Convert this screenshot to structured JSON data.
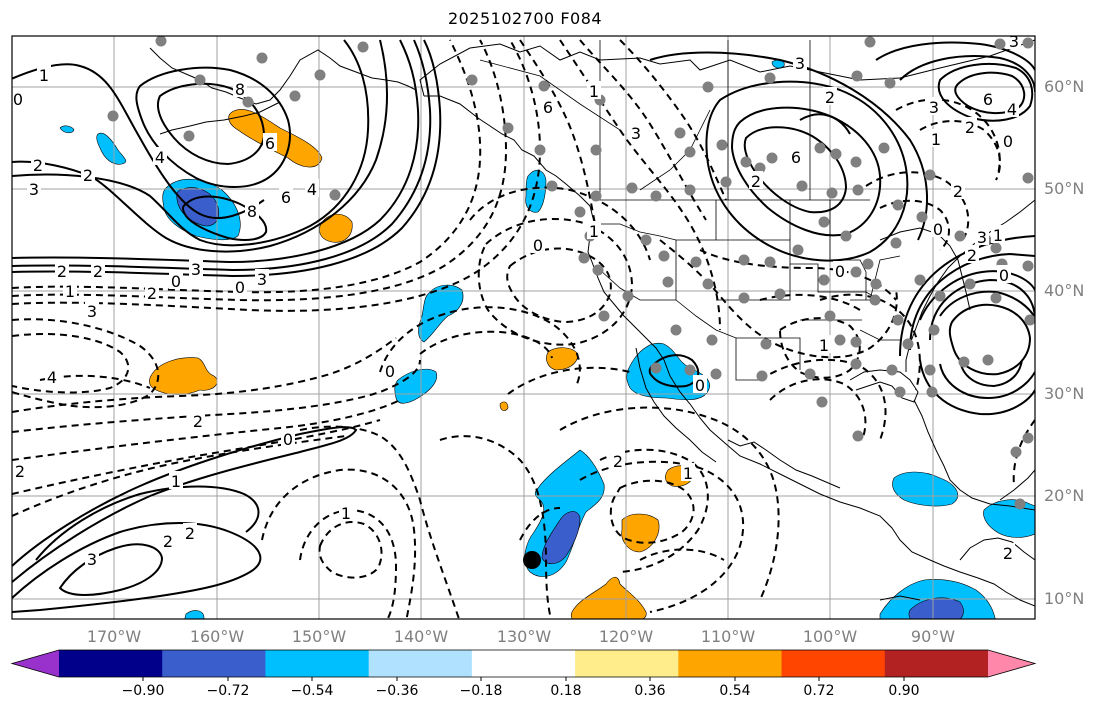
{
  "title": "2025102700 F084",
  "map": {
    "projection": "equirectangular",
    "lon_range": [
      -180,
      -80
    ],
    "lat_range": [
      8,
      65
    ]
  },
  "lat_labels": [
    "60°N",
    "50°N",
    "40°N",
    "30°N",
    "20°N",
    "10°N"
  ],
  "lon_labels": [
    "170°W",
    "160°W",
    "150°W",
    "140°W",
    "130°W",
    "120°W",
    "110°W",
    "100°W",
    "90°W"
  ],
  "colorbar": {
    "colors": [
      "#9932cc",
      "#00008b",
      "#3a5fcd",
      "#00bfff",
      "#b0e2ff",
      "#ffffff",
      "#ffec8b",
      "#ffa500",
      "#ff4500",
      "#b22222",
      "#ff88aa"
    ],
    "tick_labels": [
      "−0.90",
      "−0.72",
      "−0.54",
      "−0.36",
      "−0.18",
      "0.18",
      "0.36",
      "0.54",
      "0.72",
      "0.90"
    ]
  },
  "contour_labels": [
    {
      "text": "1"
    },
    {
      "text": "0"
    },
    {
      "text": "2"
    },
    {
      "text": "2"
    },
    {
      "text": "3"
    },
    {
      "text": "8"
    },
    {
      "text": "6"
    },
    {
      "text": "4"
    },
    {
      "text": "6"
    },
    {
      "text": "8"
    },
    {
      "text": "4"
    },
    {
      "text": "2"
    },
    {
      "text": "2"
    },
    {
      "text": "3"
    },
    {
      "text": "0"
    },
    {
      "text": "1"
    },
    {
      "text": "2"
    },
    {
      "text": "0"
    },
    {
      "text": "3"
    },
    {
      "text": "3"
    },
    {
      "text": "4"
    },
    {
      "text": "2"
    },
    {
      "text": "0"
    },
    {
      "text": "1"
    },
    {
      "text": "2"
    },
    {
      "text": "2"
    },
    {
      "text": "3"
    },
    {
      "text": "2"
    },
    {
      "text": "1"
    },
    {
      "text": "6"
    },
    {
      "text": "1"
    },
    {
      "text": "3"
    },
    {
      "text": "0"
    },
    {
      "text": "0"
    },
    {
      "text": "1"
    },
    {
      "text": "0"
    },
    {
      "text": "2"
    },
    {
      "text": "1"
    },
    {
      "text": "2"
    },
    {
      "text": "6"
    },
    {
      "text": "2"
    },
    {
      "text": "3"
    },
    {
      "text": "0"
    },
    {
      "text": "3"
    },
    {
      "text": "6"
    },
    {
      "text": "4"
    },
    {
      "text": "2"
    },
    {
      "text": "0"
    },
    {
      "text": "1"
    },
    {
      "text": "3"
    },
    {
      "text": "2"
    },
    {
      "text": "0"
    },
    {
      "text": "1"
    },
    {
      "text": "0"
    },
    {
      "text": "2"
    },
    {
      "text": "0"
    },
    {
      "text": "1"
    },
    {
      "text": "2"
    },
    {
      "text": "3"
    }
  ]
}
